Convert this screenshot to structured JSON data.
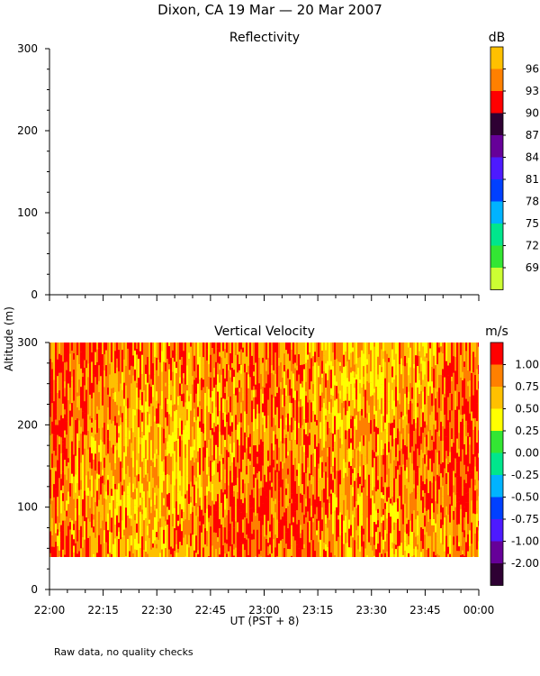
{
  "page_title": "Dixon, CA 19 Mar — 20 Mar 2007",
  "footnote": "Raw data, no quality checks",
  "shared_ylabel": "Altitude (m)",
  "shared_xlabel": "UT  (PST + 8)",
  "chart_data": [
    {
      "type": "heatmap",
      "title": "Reflectivity",
      "colorbar_unit": "dB",
      "x_ticks": [
        "22:00",
        "22:15",
        "22:30",
        "22:45",
        "23:00",
        "23:15",
        "23:30",
        "23:45",
        "00:00"
      ],
      "y_ticks": [
        0,
        100,
        200,
        300
      ],
      "ylim": [
        0,
        300
      ],
      "data_present": false,
      "colorbar": {
        "labels": [
          "69",
          "72",
          "75",
          "78",
          "81",
          "84",
          "87",
          "90",
          "93",
          "96"
        ],
        "colors": [
          "#ccff33",
          "#33e633",
          "#00e68c",
          "#00b3ff",
          "#0040ff",
          "#4d1aff",
          "#660099",
          "#2e0033",
          "#ff0000",
          "#ff8000",
          "#ffc000"
        ]
      }
    },
    {
      "type": "heatmap",
      "title": "Vertical Velocity",
      "colorbar_unit": "m/s",
      "x_ticks": [
        "22:00",
        "22:15",
        "22:30",
        "22:45",
        "23:00",
        "23:15",
        "23:30",
        "23:45",
        "00:00"
      ],
      "y_ticks": [
        0,
        100,
        200,
        300
      ],
      "ylim": [
        0,
        300
      ],
      "data_present": true,
      "data_y_range": [
        40,
        300
      ],
      "dominant_values": [
        0.5,
        0.75,
        1.0
      ],
      "colorbar": {
        "labels": [
          "-2.00",
          "-1.00",
          "-0.75",
          "-0.50",
          "-0.25",
          "0.00",
          "0.25",
          "0.50",
          "0.75",
          "1.00"
        ],
        "colors": [
          "#2e0033",
          "#660099",
          "#4d1aff",
          "#0040ff",
          "#00b3ff",
          "#00e68c",
          "#33e633",
          "#ffff00",
          "#ffc000",
          "#ff8000",
          "#ff0000"
        ]
      }
    }
  ]
}
